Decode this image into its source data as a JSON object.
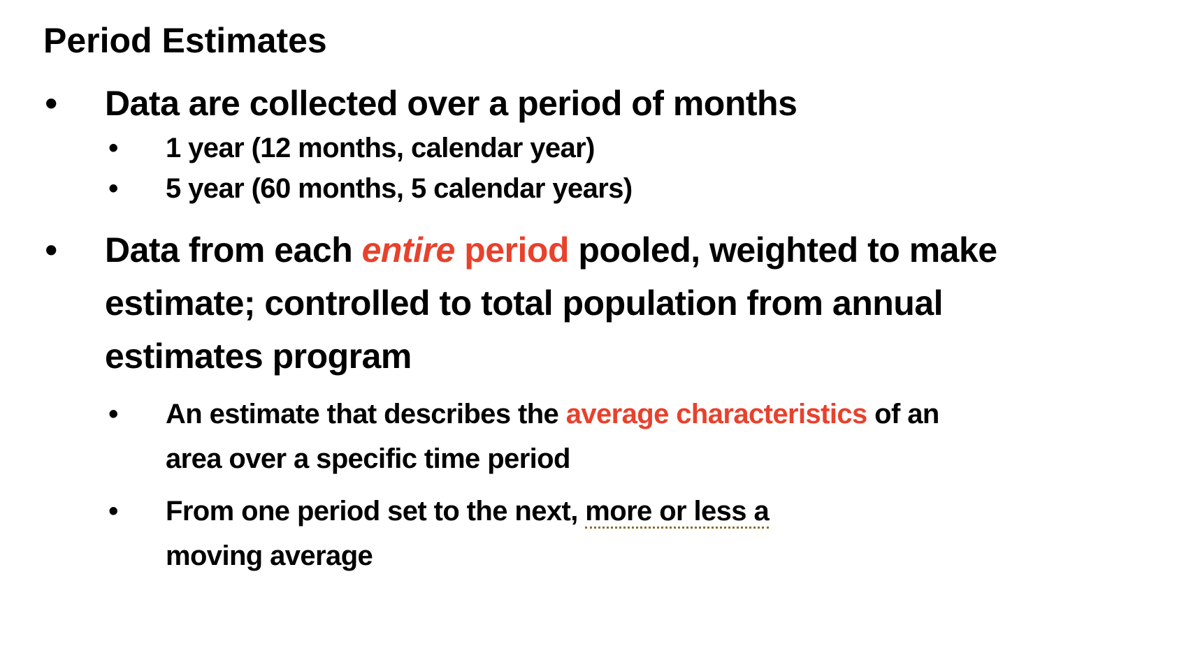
{
  "slide": {
    "title": "Period Estimates",
    "bullet_glyph": "•",
    "bullet1": {
      "text": "Data are collected over a period of months",
      "sub": [
        "1 year (12 months, calendar year)",
        "5 year (60 months, 5 calendar years)"
      ]
    },
    "bullet2": {
      "pre": "Data from each ",
      "highlight_italic": "entire",
      "highlight_space": " ",
      "highlight_plain": "period",
      "post_line1": " pooled, weighted to make",
      "line2": "estimate; controlled to total population from annual",
      "line3": "estimates program",
      "sub1": {
        "pre": "An estimate that describes the ",
        "highlight": "average characteristics",
        "post_line1": " of an",
        "line2": "area over a specific time period"
      },
      "sub2": {
        "pre": "From one period set to the next, ",
        "underlined": "more or less a",
        "line2": "moving average"
      }
    },
    "colors": {
      "accent_red": "#e8412c",
      "text": "#000000",
      "dotted_underline": "#8a6d2a"
    }
  }
}
